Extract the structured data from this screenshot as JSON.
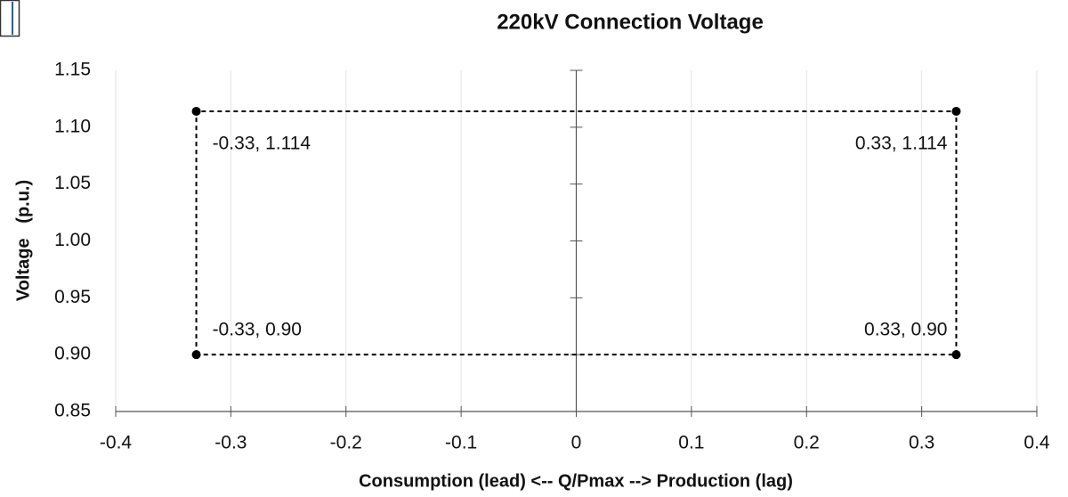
{
  "chart_data": {
    "type": "line",
    "title": "220kV Connection Voltage",
    "xlabel": "Consumption (lead) <-- Q/Pmax --> Production (lag)",
    "ylabel": "Voltage   (p.u.)",
    "xlim": [
      -0.4,
      0.4
    ],
    "xticks": [
      -0.4,
      -0.3,
      -0.2,
      -0.1,
      0,
      0.1,
      0.2,
      0.3,
      0.4
    ],
    "ylim": [
      0.85,
      1.15
    ],
    "yticks": [
      0.85,
      {
        "value": 0.9,
        "label": "0.90"
      },
      0.95,
      {
        "value": 1.0,
        "label": "1.00"
      },
      1.05,
      {
        "value": 1.1,
        "label": "1.10"
      },
      1.15
    ],
    "grid": "x",
    "series": [
      {
        "color": "#000000",
        "x": [
          -0.33,
          -0.33,
          0.33,
          0.33
        ],
        "values": [
          0.9,
          1.114,
          1.114,
          0.9
        ],
        "value_labels": [
          "-0.33, 0.90",
          "-0.33, 1.114",
          "0.33, 1.114",
          "0.33, 0.90"
        ]
      }
    ]
  }
}
